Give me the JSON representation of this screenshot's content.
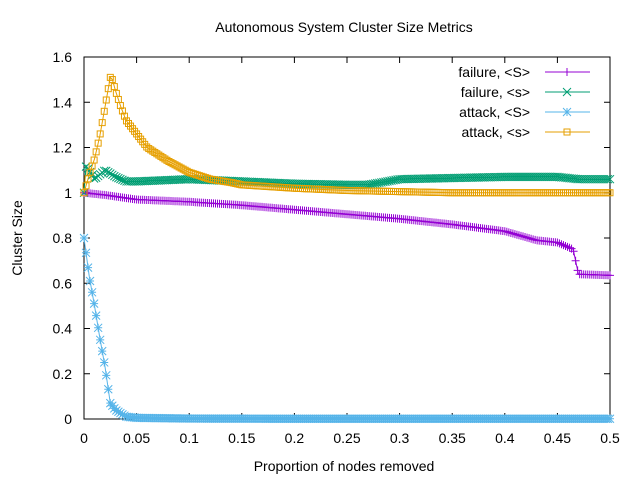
{
  "chart_data": {
    "type": "line",
    "title": "Autonomous System Cluster Size Metrics",
    "xlabel": "Proportion of nodes removed",
    "ylabel": "Cluster Size",
    "xlim": [
      0,
      0.5
    ],
    "ylim": [
      0,
      1.6
    ],
    "xticks": [
      "0",
      "0.05",
      "0.1",
      "0.15",
      "0.2",
      "0.25",
      "0.3",
      "0.35",
      "0.4",
      "0.45",
      "0.5"
    ],
    "yticks": [
      "0",
      "0.2",
      "0.4",
      "0.6",
      "0.8",
      "1",
      "1.2",
      "1.4",
      "1.6"
    ],
    "legend_position": "top-right",
    "grid": false,
    "series": [
      {
        "name": "failure, <S>",
        "color": "#9400d3",
        "marker": "plus",
        "x": [
          0,
          0.02,
          0.05,
          0.1,
          0.15,
          0.2,
          0.25,
          0.3,
          0.35,
          0.4,
          0.43,
          0.45,
          0.465,
          0.47,
          0.5
        ],
        "y": [
          1.0,
          0.99,
          0.97,
          0.96,
          0.945,
          0.925,
          0.905,
          0.885,
          0.86,
          0.83,
          0.79,
          0.78,
          0.75,
          0.64,
          0.635
        ]
      },
      {
        "name": "failure, <s>",
        "color": "#009e73",
        "marker": "cross",
        "x": [
          0,
          0.002,
          0.01,
          0.02,
          0.03,
          0.04,
          0.05,
          0.1,
          0.15,
          0.2,
          0.25,
          0.27,
          0.3,
          0.35,
          0.4,
          0.45,
          0.47,
          0.5
        ],
        "y": [
          1.0,
          1.12,
          1.06,
          1.1,
          1.07,
          1.05,
          1.05,
          1.06,
          1.05,
          1.04,
          1.035,
          1.035,
          1.06,
          1.065,
          1.07,
          1.07,
          1.06,
          1.06
        ]
      },
      {
        "name": "attack, <S>",
        "color": "#56b4e9",
        "marker": "star",
        "x": [
          0,
          0.005,
          0.01,
          0.015,
          0.02,
          0.025,
          0.03,
          0.04,
          0.05,
          0.1,
          0.2,
          0.3,
          0.4,
          0.5
        ],
        "y": [
          0.8,
          0.63,
          0.5,
          0.36,
          0.23,
          0.07,
          0.04,
          0.01,
          0.005,
          0.002,
          0.001,
          0.001,
          0.001,
          0.001
        ]
      },
      {
        "name": "attack, <s>",
        "color": "#e69f00",
        "marker": "square",
        "x": [
          0,
          0.005,
          0.01,
          0.015,
          0.02,
          0.025,
          0.027,
          0.03,
          0.035,
          0.04,
          0.05,
          0.06,
          0.08,
          0.1,
          0.12,
          0.14,
          0.15,
          0.2,
          0.25,
          0.3,
          0.35,
          0.4,
          0.45,
          0.5
        ],
        "y": [
          1.0,
          1.08,
          1.15,
          1.25,
          1.38,
          1.51,
          1.5,
          1.45,
          1.38,
          1.32,
          1.26,
          1.2,
          1.14,
          1.09,
          1.06,
          1.045,
          1.035,
          1.02,
          1.01,
          1.005,
          1.0,
          1.0,
          1.0,
          1.0
        ]
      }
    ]
  }
}
